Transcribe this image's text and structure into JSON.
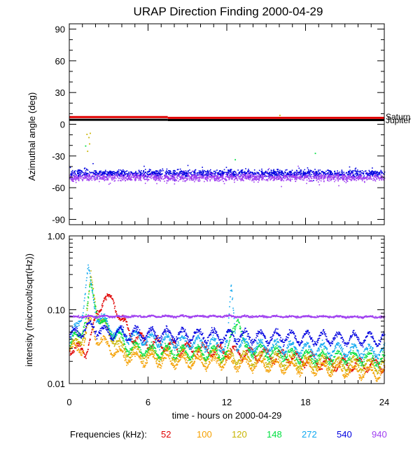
{
  "title": "URAP Direction Finding  2000-04-29",
  "chart_data": [
    {
      "type": "scatter",
      "panel": "top",
      "ylabel": "Azimuthal angle (deg)",
      "ylim": [
        -95,
        95
      ],
      "xlim": [
        0,
        24
      ],
      "yticks": [
        90,
        60,
        30,
        0,
        -30,
        -60,
        -90
      ],
      "xticks": [
        0,
        6,
        12,
        18,
        24
      ],
      "reference_lines": [
        {
          "name": "Saturn",
          "color": "#e00000",
          "segments": [
            [
              0,
              7.5,
              6.8
            ],
            [
              7.5,
              24,
              6.0
            ]
          ]
        },
        {
          "name": "Jupiter",
          "color": "#000000",
          "segments": [
            [
              0,
              7.5,
              4.2
            ],
            [
              7.5,
              24,
              4.0
            ]
          ]
        }
      ],
      "series": [
        {
          "name": "540",
          "color": "#0000e0",
          "band": {
            "center": -46,
            "spread": 5
          }
        },
        {
          "name": "940",
          "color": "#a040f0",
          "band": {
            "center": -50,
            "spread": 5
          }
        },
        {
          "name": "120",
          "color": "#c8b400",
          "points": [
            [
              1.3,
              -9
            ],
            [
              1.45,
              -12
            ],
            [
              1.55,
              -8
            ],
            [
              1.5,
              -18
            ],
            [
              1.35,
              -25
            ],
            [
              16.0,
              9
            ]
          ]
        },
        {
          "name": "148",
          "color": "#00e040",
          "points": [
            [
              1.2,
              -20
            ],
            [
              12.6,
              -33
            ],
            [
              18.7,
              -27
            ]
          ]
        }
      ]
    },
    {
      "type": "scatter",
      "panel": "bottom",
      "ylabel": "intensity (microvolt/sqrt(Hz))",
      "yscale": "log",
      "ylim": [
        0.01,
        1.0
      ],
      "xlim": [
        0,
        24
      ],
      "xticks": [
        0,
        6,
        12,
        18,
        24
      ],
      "ytick_labels": [
        "1.00",
        "0.10",
        "0.01"
      ],
      "xlabel": "time - hours on 2000-04-29",
      "series": [
        {
          "name": "52",
          "color": "#e00000",
          "profile": [
            [
              0,
              0.032
            ],
            [
              1.2,
              0.028
            ],
            [
              2.6,
              0.16
            ],
            [
              3.4,
              0.12
            ],
            [
              4.5,
              0.05
            ],
            [
              6,
              0.036
            ],
            [
              9,
              0.03
            ],
            [
              12,
              0.028
            ],
            [
              15,
              0.025
            ],
            [
              18,
              0.022
            ],
            [
              20,
              0.019
            ],
            [
              24,
              0.018
            ]
          ]
        },
        {
          "name": "100",
          "color": "#f5a000",
          "profile": [
            [
              0,
              0.028
            ],
            [
              1,
              0.032
            ],
            [
              1.5,
              0.07
            ],
            [
              2.2,
              0.04
            ],
            [
              4,
              0.024
            ],
            [
              6,
              0.022
            ],
            [
              9,
              0.02
            ],
            [
              12,
              0.02
            ],
            [
              15,
              0.018
            ],
            [
              18,
              0.017
            ],
            [
              24,
              0.014
            ]
          ]
        },
        {
          "name": "120",
          "color": "#c8b400",
          "profile": [
            [
              0,
              0.03
            ],
            [
              1.2,
              0.05
            ],
            [
              1.6,
              0.28
            ],
            [
              2.2,
              0.08
            ],
            [
              3,
              0.05
            ],
            [
              4,
              0.03
            ],
            [
              6,
              0.026
            ],
            [
              12,
              0.024
            ],
            [
              18,
              0.02
            ],
            [
              24,
              0.018
            ]
          ]
        },
        {
          "name": "148",
          "color": "#00e040",
          "profile": [
            [
              0,
              0.032
            ],
            [
              1.2,
              0.07
            ],
            [
              1.6,
              0.22
            ],
            [
              2.3,
              0.07
            ],
            [
              3.4,
              0.05
            ],
            [
              4.5,
              0.032
            ],
            [
              6,
              0.029
            ],
            [
              12,
              0.026
            ],
            [
              12.8,
              0.09
            ],
            [
              13.3,
              0.03
            ],
            [
              18,
              0.024
            ],
            [
              24,
              0.022
            ]
          ]
        },
        {
          "name": "272",
          "color": "#10a8f0",
          "profile": [
            [
              0,
              0.036
            ],
            [
              1.0,
              0.1
            ],
            [
              1.4,
              0.35
            ],
            [
              2.0,
              0.09
            ],
            [
              3.5,
              0.05
            ],
            [
              6,
              0.04
            ],
            [
              12,
              0.034
            ],
            [
              12.3,
              0.2
            ],
            [
              12.7,
              0.035
            ],
            [
              18,
              0.03
            ],
            [
              24,
              0.028
            ]
          ]
        },
        {
          "name": "540",
          "color": "#0000e0",
          "profile": [
            [
              0,
              0.045
            ],
            [
              1.5,
              0.06
            ],
            [
              3,
              0.05
            ],
            [
              6,
              0.048
            ],
            [
              12,
              0.045
            ],
            [
              18,
              0.043
            ],
            [
              24,
              0.041
            ]
          ]
        },
        {
          "name": "940",
          "color": "#a040f0",
          "profile": [
            [
              0,
              0.082
            ],
            [
              6,
              0.083
            ],
            [
              12,
              0.083
            ],
            [
              18,
              0.082
            ],
            [
              24,
              0.081
            ]
          ]
        }
      ]
    }
  ],
  "legend": {
    "label": "Frequencies (kHz):",
    "items": [
      {
        "text": "52",
        "color": "#e00000"
      },
      {
        "text": "100",
        "color": "#f5a000"
      },
      {
        "text": "120",
        "color": "#c8b400"
      },
      {
        "text": "148",
        "color": "#00e040"
      },
      {
        "text": "272",
        "color": "#10a8f0"
      },
      {
        "text": "540",
        "color": "#0000e0"
      },
      {
        "text": "940",
        "color": "#a040f0"
      }
    ]
  }
}
